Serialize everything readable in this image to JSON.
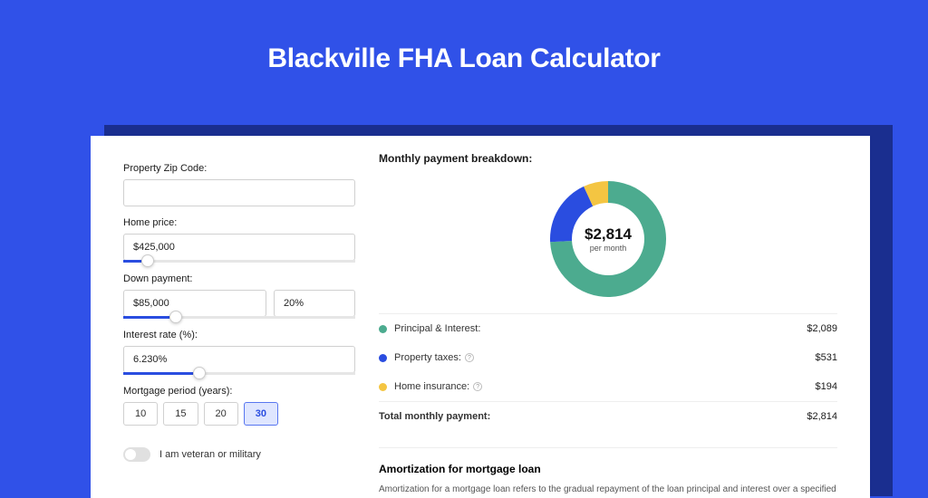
{
  "title": "Blackville FHA Loan Calculator",
  "colors": {
    "page_bg": "#3051e8",
    "shadow": "#1a2e8f",
    "card_bg": "#ffffff",
    "accent": "#2a4de0",
    "text": "#1a1a1a",
    "border": "#d0d0d0"
  },
  "form": {
    "zip": {
      "label": "Property Zip Code:",
      "value": ""
    },
    "home_price": {
      "label": "Home price:",
      "value": "$425,000",
      "slider_pct": 8
    },
    "down_payment": {
      "label": "Down payment:",
      "amount": "$85,000",
      "pct": "20%",
      "slider_pct": 20
    },
    "interest_rate": {
      "label": "Interest rate (%):",
      "value": "6.230%",
      "slider_pct": 30
    },
    "mortgage_period": {
      "label": "Mortgage period (years):",
      "options": [
        "10",
        "15",
        "20",
        "30"
      ],
      "selected": "30"
    },
    "veteran": {
      "label": "I am veteran or military",
      "checked": false
    }
  },
  "breakdown": {
    "title": "Monthly payment breakdown:",
    "center_amount": "$2,814",
    "center_sub": "per month",
    "donut": {
      "type": "donut",
      "size": 128,
      "inner_radius": 40,
      "outer_radius": 64,
      "background_color": "#ffffff",
      "slices": [
        {
          "label": "Principal & Interest",
          "value": 2089,
          "pct": 74.2,
          "color": "#4cab8f"
        },
        {
          "label": "Property taxes",
          "value": 531,
          "pct": 18.9,
          "color": "#2a4de0"
        },
        {
          "label": "Home insurance",
          "value": 194,
          "pct": 6.9,
          "color": "#f4c542"
        }
      ]
    },
    "rows": [
      {
        "label": "Principal & Interest:",
        "value": "$2,089",
        "color": "#4cab8f",
        "info": false
      },
      {
        "label": "Property taxes:",
        "value": "$531",
        "color": "#2a4de0",
        "info": true
      },
      {
        "label": "Home insurance:",
        "value": "$194",
        "color": "#f4c542",
        "info": true
      }
    ],
    "total": {
      "label": "Total monthly payment:",
      "value": "$2,814"
    }
  },
  "amortization": {
    "title": "Amortization for mortgage loan",
    "text": "Amortization for a mortgage loan refers to the gradual repayment of the loan principal and interest over a specified"
  }
}
